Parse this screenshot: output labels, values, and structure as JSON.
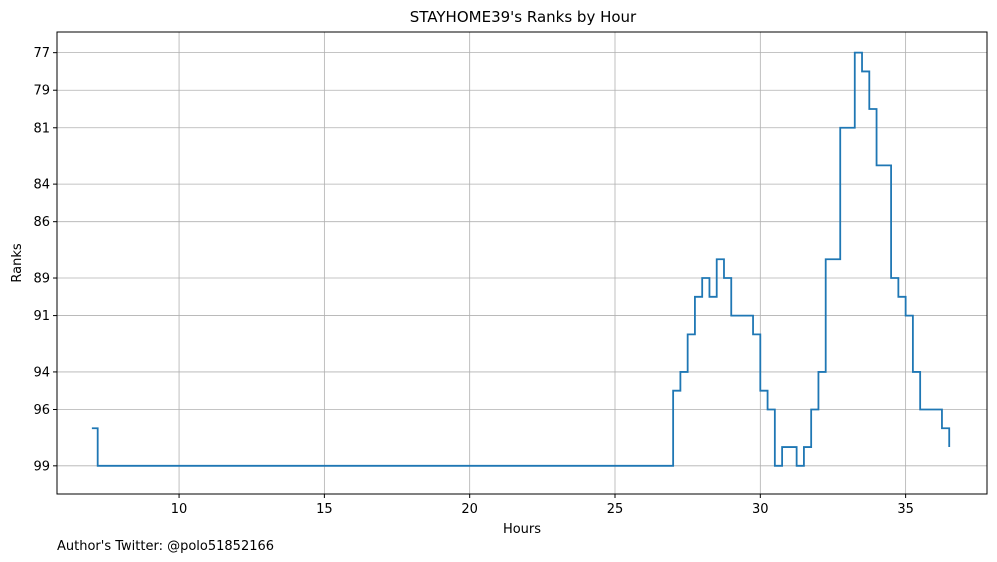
{
  "chart_data": {
    "type": "line",
    "drawstyle": "steps-post",
    "title": "STAYHOME39's Ranks by Hour",
    "xlabel": "Hours",
    "ylabel": "Ranks",
    "xlim": [
      5.8,
      37.8
    ],
    "ylim": [
      100.5,
      75.9
    ],
    "y_inverted": true,
    "grid": true,
    "x_ticks": [
      10,
      15,
      20,
      25,
      30,
      35
    ],
    "y_ticks": [
      77,
      79,
      81,
      84,
      86,
      89,
      91,
      94,
      96,
      99
    ],
    "series": [
      {
        "color": "#1f77b4",
        "x": [
          7.0,
          7.2,
          27.0,
          27.25,
          27.5,
          27.75,
          28.0,
          28.25,
          28.5,
          28.75,
          29.0,
          29.75,
          30.0,
          30.25,
          30.5,
          30.75,
          31.0,
          31.25,
          31.5,
          31.75,
          32.0,
          32.25,
          32.75,
          33.25,
          33.5,
          33.75,
          34.0,
          34.5,
          34.75,
          35.0,
          35.25,
          35.5,
          36.0,
          36.25,
          36.5
        ],
        "y": [
          97,
          99,
          95,
          94,
          92,
          90,
          89,
          90,
          88,
          89,
          91,
          92,
          95,
          96,
          99,
          98,
          98,
          99,
          98,
          96,
          94,
          88,
          81,
          77,
          78,
          80,
          83,
          89,
          90,
          91,
          94,
          96,
          96,
          97,
          98
        ]
      }
    ]
  },
  "footer": {
    "twitter": "Author's Twitter: @polo51852166"
  }
}
